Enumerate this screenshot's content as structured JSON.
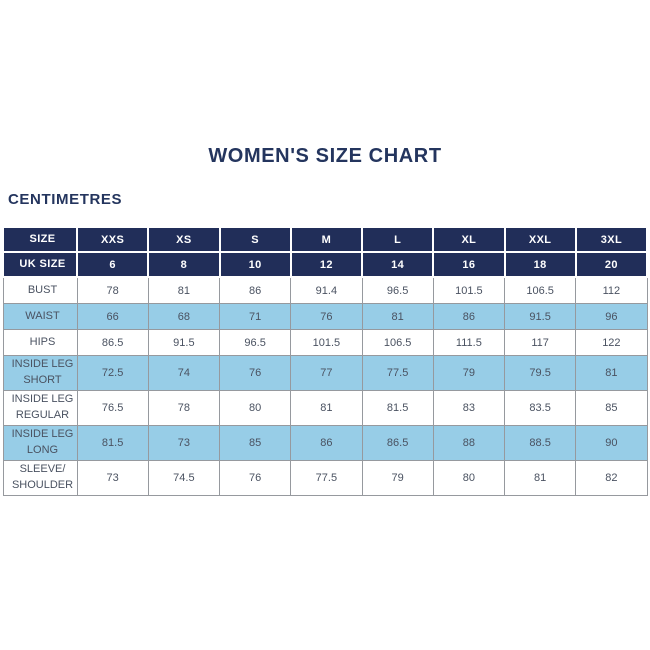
{
  "title": "WOMEN'S SIZE CHART",
  "unit_label": "CENTIMETRES",
  "colors": {
    "navy_header": "#212e59",
    "shaded_blue": "#97cde7",
    "title_text": "#24355e",
    "cell_text": "#4a5261",
    "border_gray": "#96999e",
    "background": "#ffffff"
  },
  "chart_data": {
    "type": "table",
    "title": "WOMEN'S SIZE CHART",
    "unit": "CENTIMETRES",
    "size_row": {
      "label": "SIZE",
      "values": [
        "XXS",
        "XS",
        "S",
        "M",
        "L",
        "XL",
        "XXL",
        "3XL"
      ]
    },
    "uk_size_row": {
      "label": "UK SIZE",
      "values": [
        6,
        8,
        10,
        12,
        14,
        16,
        18,
        20
      ]
    },
    "measurement_rows": [
      {
        "label": "BUST",
        "values": [
          78,
          81,
          86,
          91.4,
          96.5,
          101.5,
          106.5,
          112
        ],
        "shaded": false
      },
      {
        "label": "WAIST",
        "values": [
          66,
          68,
          71,
          76,
          81,
          86,
          91.5,
          96
        ],
        "shaded": true
      },
      {
        "label": "HIPS",
        "values": [
          86.5,
          91.5,
          96.5,
          101.5,
          106.5,
          111.5,
          117,
          122
        ],
        "shaded": false
      },
      {
        "label": "INSIDE LEG SHORT",
        "values": [
          72.5,
          74,
          76,
          77,
          77.5,
          79,
          79.5,
          81
        ],
        "shaded": true
      },
      {
        "label": "INSIDE LEG REGULAR",
        "values": [
          76.5,
          78,
          80,
          81,
          81.5,
          83,
          83.5,
          85
        ],
        "shaded": false
      },
      {
        "label": "INSIDE LEG LONG",
        "values": [
          81.5,
          73,
          85,
          86,
          86.5,
          88,
          88.5,
          90
        ],
        "shaded": true
      },
      {
        "label": "SLEEVE/SHOULDER",
        "values": [
          73,
          74.5,
          76,
          77.5,
          79,
          80,
          81,
          82
        ],
        "shaded": false
      }
    ]
  }
}
